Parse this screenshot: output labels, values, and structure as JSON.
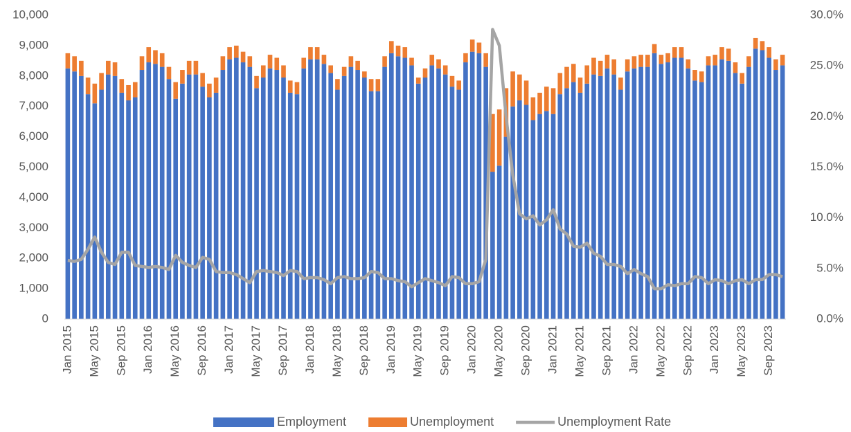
{
  "chart_data": {
    "type": "bar",
    "stacked": true,
    "categories": [
      "Jan 2015",
      null,
      null,
      null,
      "May 2015",
      null,
      null,
      null,
      "Sep 2015",
      null,
      null,
      null,
      "Jan 2016",
      null,
      null,
      null,
      "May 2016",
      null,
      null,
      null,
      "Sep 2016",
      null,
      null,
      null,
      "Jan 2017",
      null,
      null,
      null,
      "May 2017",
      null,
      null,
      null,
      "Sep 2017",
      null,
      null,
      null,
      "Jan 2018",
      null,
      null,
      null,
      "May 2018",
      null,
      null,
      null,
      "Sep 2018",
      null,
      null,
      null,
      "Jan 2019",
      null,
      null,
      null,
      "May 2019",
      null,
      null,
      null,
      "Sep 2019",
      null,
      null,
      null,
      "Jan 2020",
      null,
      null,
      null,
      "May 2020",
      null,
      null,
      null,
      "Sep 2020",
      null,
      null,
      null,
      "Jan 2021",
      null,
      null,
      null,
      "May 2021",
      null,
      null,
      null,
      "Sep 2021",
      null,
      null,
      null,
      "Jan 2022",
      null,
      null,
      null,
      "May 2022",
      null,
      null,
      null,
      "Sep 2022",
      null,
      null,
      null,
      "Jan 2023",
      null,
      null,
      null,
      "May 2023",
      null,
      null,
      null,
      "Sep 2023",
      null,
      null
    ],
    "series": [
      {
        "name": "Employment",
        "type": "bar",
        "color": "#4472c4",
        "values": [
          8250,
          8150,
          8000,
          7400,
          7100,
          7550,
          8050,
          8000,
          7450,
          7200,
          7300,
          8200,
          8450,
          8400,
          8300,
          7900,
          7250,
          7750,
          8050,
          8050,
          7650,
          7300,
          7450,
          8200,
          8550,
          8600,
          8450,
          8300,
          7600,
          7950,
          8250,
          8200,
          7950,
          7450,
          7400,
          8250,
          8550,
          8550,
          8400,
          8100,
          7550,
          8000,
          8300,
          8200,
          7950,
          7500,
          7500,
          8300,
          8750,
          8650,
          8600,
          8350,
          7750,
          7950,
          8350,
          8250,
          8050,
          7650,
          7550,
          8450,
          8800,
          8750,
          8300,
          4850,
          5050,
          6000,
          7000,
          7200,
          7050,
          6550,
          6750,
          6850,
          6750,
          7400,
          7600,
          7800,
          7450,
          7750,
          8050,
          8000,
          8250,
          8050,
          7550,
          8150,
          8250,
          8300,
          8300,
          8750,
          8400,
          8450,
          8600,
          8600,
          8250,
          7850,
          7800,
          8350,
          8350,
          8550,
          8500,
          8100,
          7750,
          8300,
          8900,
          8850,
          8600,
          8200,
          8350
        ]
      },
      {
        "name": "Unemployment",
        "type": "bar",
        "color": "#ed7d31",
        "values": [
          500,
          500,
          500,
          550,
          650,
          550,
          450,
          450,
          450,
          500,
          500,
          450,
          500,
          450,
          450,
          400,
          550,
          450,
          450,
          450,
          450,
          450,
          500,
          450,
          400,
          400,
          350,
          350,
          400,
          400,
          450,
          400,
          400,
          400,
          400,
          350,
          400,
          400,
          300,
          250,
          350,
          300,
          350,
          300,
          200,
          400,
          400,
          350,
          400,
          350,
          350,
          250,
          200,
          300,
          350,
          300,
          300,
          350,
          300,
          300,
          400,
          350,
          450,
          1900,
          1850,
          1600,
          1150,
          850,
          800,
          750,
          700,
          800,
          850,
          700,
          700,
          600,
          500,
          600,
          550,
          500,
          450,
          500,
          400,
          400,
          400,
          400,
          400,
          300,
          300,
          300,
          350,
          350,
          300,
          350,
          350,
          300,
          350,
          400,
          400,
          350,
          350,
          350,
          350,
          300,
          350,
          350,
          350
        ]
      },
      {
        "name": "Unemployment Rate",
        "type": "line",
        "axis": "y2",
        "color": "#a5a5a5",
        "values": [
          5.8,
          5.7,
          5.9,
          6.9,
          8.1,
          6.6,
          5.6,
          5.4,
          6.6,
          6.6,
          5.3,
          5.2,
          5.1,
          5.2,
          5.1,
          4.9,
          6.3,
          5.6,
          5.3,
          5.1,
          6.1,
          5.9,
          4.7,
          4.6,
          4.6,
          4.4,
          4.0,
          3.6,
          4.7,
          4.8,
          4.7,
          4.6,
          4.3,
          4.8,
          4.7,
          4.0,
          4.1,
          4.1,
          3.9,
          3.5,
          4.1,
          4.2,
          4.0,
          4.0,
          4.1,
          4.7,
          4.6,
          4.0,
          4.0,
          3.8,
          3.7,
          3.2,
          3.6,
          4.0,
          3.8,
          3.6,
          3.3,
          4.2,
          4.1,
          3.5,
          3.5,
          3.7,
          5.9,
          28.6,
          27.0,
          20.0,
          14.2,
          10.4,
          9.9,
          10.2,
          9.3,
          9.8,
          10.8,
          8.9,
          8.4,
          7.2,
          7.1,
          7.5,
          6.5,
          6.2,
          5.4,
          5.4,
          5.2,
          4.5,
          4.9,
          4.5,
          4.2,
          3.0,
          3.0,
          3.4,
          3.3,
          3.5,
          3.5,
          4.2,
          4.1,
          3.5,
          3.9,
          3.8,
          3.5,
          3.8,
          3.9,
          3.5,
          3.9,
          3.9,
          4.4,
          4.4,
          4.2
        ]
      }
    ],
    "ylim": [
      0,
      10000
    ],
    "yticks": [
      {
        "value": 0,
        "label": "0"
      },
      {
        "value": 1000,
        "label": "1,000"
      },
      {
        "value": 2000,
        "label": "2,000"
      },
      {
        "value": 3000,
        "label": "3,000"
      },
      {
        "value": 4000,
        "label": "4,000"
      },
      {
        "value": 5000,
        "label": "5,000"
      },
      {
        "value": 6000,
        "label": "6,000"
      },
      {
        "value": 7000,
        "label": "7,000"
      },
      {
        "value": 8000,
        "label": "8,000"
      },
      {
        "value": 9000,
        "label": "9,000"
      },
      {
        "value": 10000,
        "label": "10,000"
      }
    ],
    "y2lim": [
      0,
      30
    ],
    "y2ticks": [
      {
        "value": 0,
        "label": "0.0%"
      },
      {
        "value": 5,
        "label": "5.0%"
      },
      {
        "value": 10,
        "label": "10.0%"
      },
      {
        "value": 15,
        "label": "15.0%"
      },
      {
        "value": 20,
        "label": "20.0%"
      },
      {
        "value": 25,
        "label": "25.0%"
      },
      {
        "value": 30,
        "label": "30.0%"
      }
    ],
    "grid": false,
    "legend": "bottom"
  }
}
